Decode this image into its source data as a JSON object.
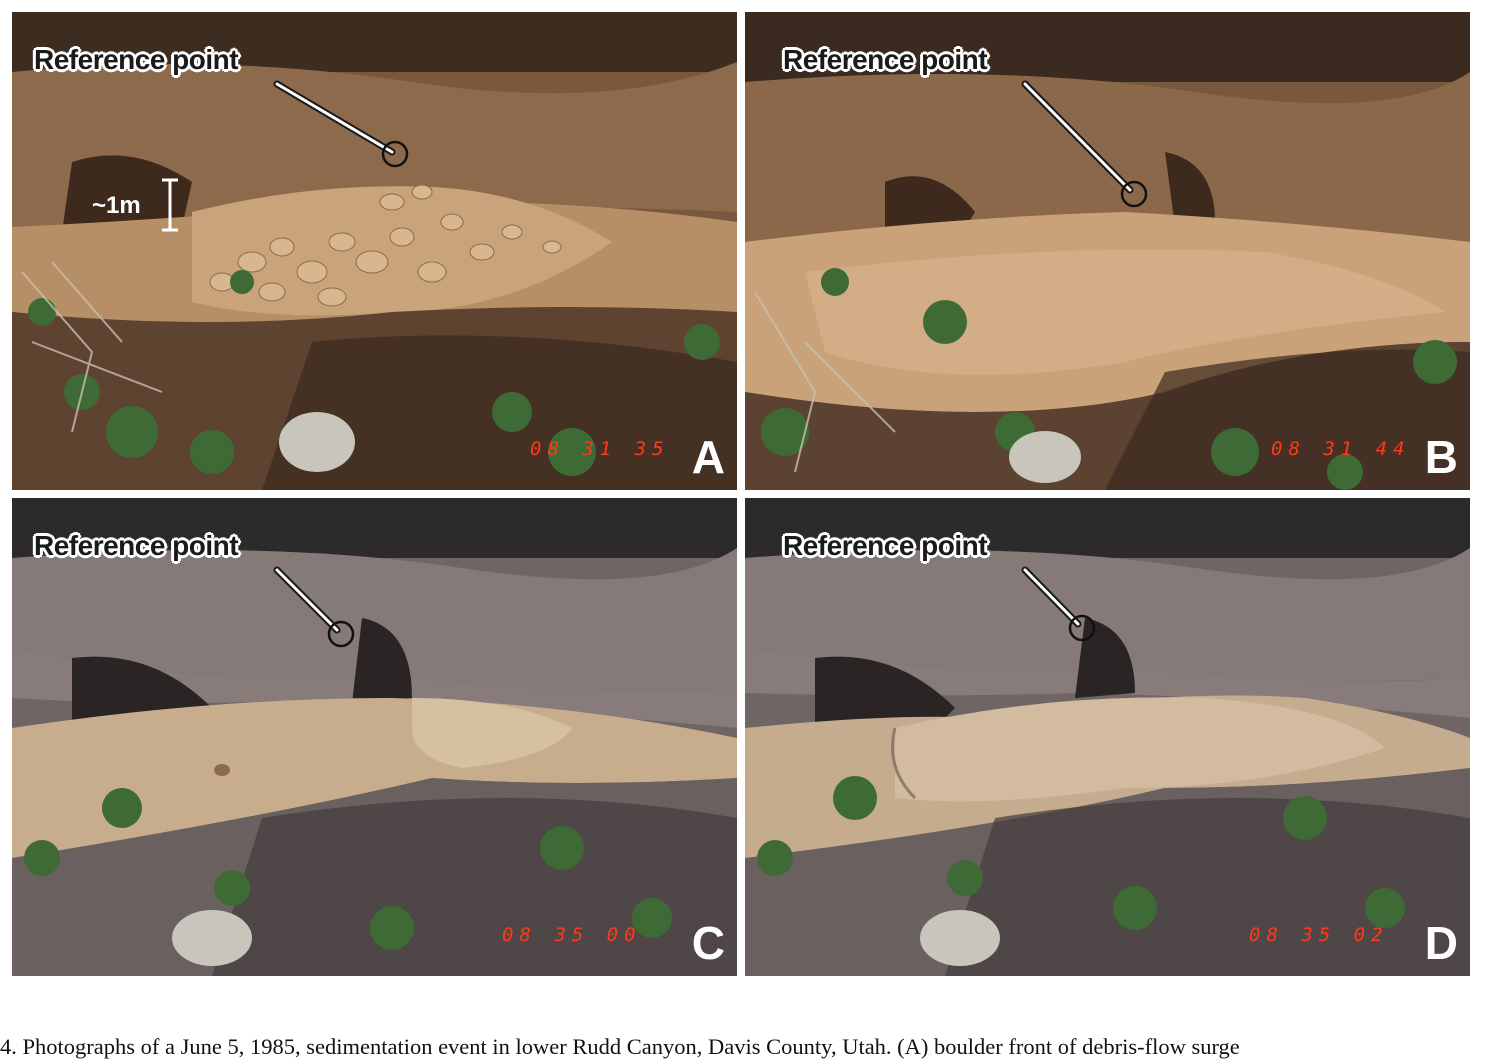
{
  "panels": [
    {
      "id": "A",
      "letter": "A",
      "ref_label": "Reference point",
      "timestamp": "08 31 35",
      "scale_label": "~1m"
    },
    {
      "id": "B",
      "letter": "B",
      "ref_label": "Reference point",
      "timestamp": "08 31 44"
    },
    {
      "id": "C",
      "letter": "C",
      "ref_label": "Reference point",
      "timestamp": "08 35 00"
    },
    {
      "id": "D",
      "letter": "D",
      "ref_label": "Reference point",
      "timestamp": "08 35 02"
    }
  ],
  "caption": "4. Photographs of a June 5, 1985, sedimentation event in lower Rudd Canyon, Davis County, Utah. (A) boulder front of debris-flow surge",
  "colors": {
    "bank_warm": "#8a6446",
    "mud_warm": "#c9a57a",
    "bank_cool": "#7d7270",
    "mud_cool": "#c8ae8e",
    "vegetation": "#3e6b35",
    "timestamp": "#ff3a1a"
  }
}
